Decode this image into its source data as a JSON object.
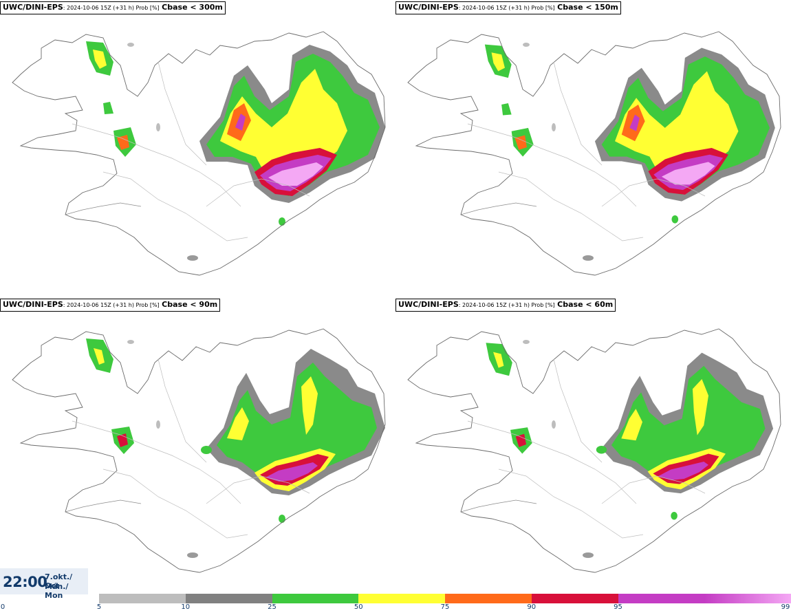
{
  "panels": [
    {
      "model": "UWC/DINI-EPS",
      "run": ": 2024-10-06 15Z (+31 h) Prob [%]",
      "variable": "Cbase < 300m"
    },
    {
      "model": "UWC/DINI-EPS",
      "run": ": 2024-10-06 15Z (+31 h) Prob [%]",
      "variable": "Cbase < 150m"
    },
    {
      "model": "UWC/DINI-EPS",
      "run": ": 2024-10-06 15Z (+31 h) Prob [%]",
      "variable": "Cbase < 90m"
    },
    {
      "model": "UWC/DINI-EPS",
      "run": ": 2024-10-06 15Z (+31 h) Prob [%]",
      "variable": "Cbase < 60m"
    }
  ],
  "valid_time": {
    "time": "22:00",
    "date_line1": "7.okt./ Oct",
    "date_line2": "Mán./ Mon"
  },
  "colorbar": {
    "ticks": [
      "0",
      "5",
      "10",
      "25",
      "50",
      "75",
      "90",
      "95",
      "99"
    ],
    "colors": [
      "#bdbdbd",
      "#808080",
      "#3ec93e",
      "#ffff33",
      "#ff6a1a",
      "#d8103a",
      "#c43cc4",
      "#f4a8f4"
    ]
  }
}
